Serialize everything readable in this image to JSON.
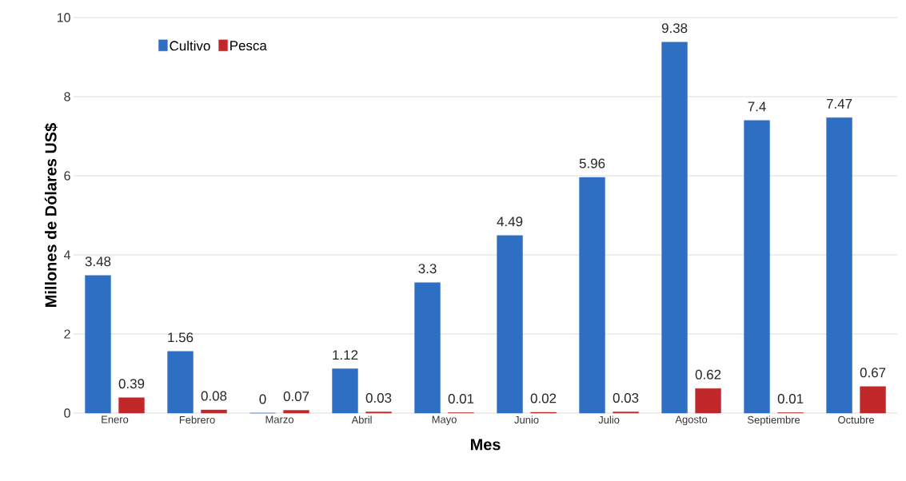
{
  "chart_data": {
    "type": "bar",
    "xlabel": "Mes",
    "ylabel": "Millones de Dólares US$",
    "categories": [
      "Enero",
      "Febrero",
      "Marzo",
      "Abril",
      "Mayo",
      "Junio",
      "Julio",
      "Agosto",
      "Septiembre",
      "Octubre"
    ],
    "series": [
      {
        "name": "Cultivo",
        "color": "#2e6fc4",
        "values": [
          3.48,
          1.56,
          0,
          1.12,
          3.3,
          4.49,
          5.96,
          9.38,
          7.4,
          7.47
        ]
      },
      {
        "name": "Pesca",
        "color": "#c0282a",
        "values": [
          0.39,
          0.08,
          0.07,
          0.03,
          0.01,
          0.02,
          0.03,
          0.62,
          0.01,
          0.67
        ]
      }
    ],
    "ylim": [
      0,
      10
    ],
    "yticks": [
      0,
      2,
      4,
      6,
      8,
      10
    ],
    "grid": "y",
    "legend": "top left",
    "data_labels": true
  }
}
